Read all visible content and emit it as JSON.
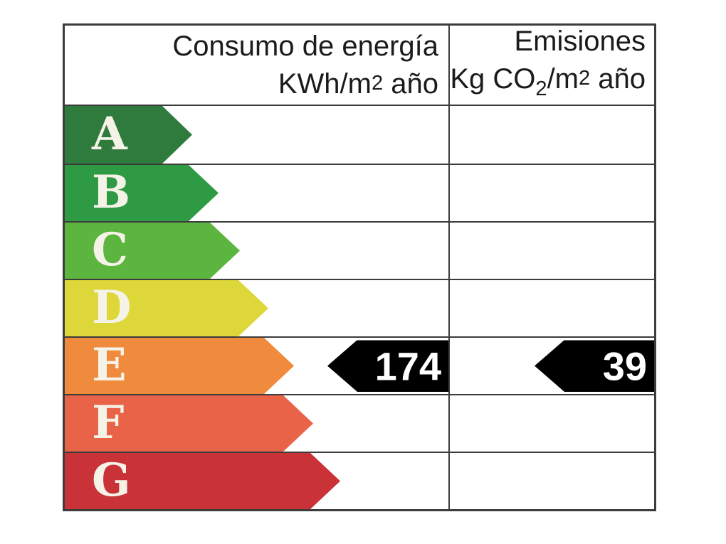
{
  "header": {
    "col1": {
      "line1": "Consumo de energía",
      "line2": {
        "pre": "KWh/m",
        "sup": "2",
        "post": " año"
      }
    },
    "col2": {
      "line1": "Emisiones",
      "line2": {
        "pre": "Kg CO",
        "sub": "2",
        "mid": "/m",
        "sup": "2",
        "post": " año"
      }
    }
  },
  "ratings": [
    {
      "letter": "A",
      "color": "#2f7a3d",
      "arrow_width": 179
    },
    {
      "letter": "B",
      "color": "#2f9a44",
      "arrow_width": 216
    },
    {
      "letter": "C",
      "color": "#5cb53f",
      "arrow_width": 246
    },
    {
      "letter": "D",
      "color": "#ddd739",
      "arrow_width": 286
    },
    {
      "letter": "E",
      "color": "#f08a3c",
      "arrow_width": 322
    },
    {
      "letter": "F",
      "color": "#e96349",
      "arrow_width": 349
    },
    {
      "letter": "G",
      "color": "#c93237",
      "arrow_width": 387
    }
  ],
  "result": {
    "rating": "E",
    "consumption_value": "174",
    "emissions_value": "39"
  },
  "colors": {
    "grid": "#3c3c3c",
    "letter": "#f5f3e7",
    "marker_background": "#000000",
    "marker_text": "#ffffff"
  },
  "chart_data": {
    "type": "table",
    "title": "Etiqueta de eficiencia energética",
    "columns": [
      "Consumo de energía KWh/m2 año",
      "Emisiones Kg CO2/m2 año"
    ],
    "categories": [
      "A",
      "B",
      "C",
      "D",
      "E",
      "F",
      "G"
    ],
    "scale_colors": [
      "#2f7a3d",
      "#2f9a44",
      "#5cb53f",
      "#ddd739",
      "#f08a3c",
      "#e96349",
      "#c93237"
    ],
    "selected_rating": "E",
    "values": {
      "consumo_kwh_m2_ano": 174,
      "emisiones_kg_co2_m2_ano": 39
    },
    "legend_position": "none",
    "grid": true
  }
}
